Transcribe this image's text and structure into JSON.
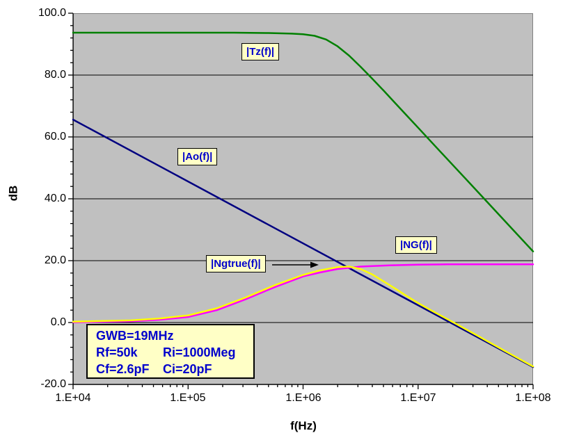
{
  "chart_data": {
    "type": "line",
    "title": "",
    "xlabel": "f(Hz)",
    "ylabel": "dB",
    "x_scale": "log10",
    "xlim": [
      10000,
      100000000
    ],
    "ylim": [
      -20,
      100
    ],
    "y_major_step": 20,
    "y_minor_step": 4,
    "grid": "horizontal major gridlines only",
    "legend_position": "inline boxed labels on plot",
    "plot_bg_color": "#c0c0c0",
    "plot_border_color": "#808080",
    "label_box_bg": "#ffffc6",
    "label_text_color": "#0000cc",
    "x_tick_labels": [
      "1.E+04",
      "1.E+05",
      "1.E+06",
      "1.E+07",
      "1.E+08"
    ],
    "y_tick_labels": [
      "100.0",
      "80.0",
      "60.0",
      "40.0",
      "20.0",
      "0.0",
      "-20.0"
    ],
    "series": [
      {
        "name": "|Tz(f)|",
        "color": "#008000",
        "points_logf_db": [
          [
            4,
            93.7
          ],
          [
            4.5,
            93.7
          ],
          [
            5,
            93.7
          ],
          [
            5.4,
            93.7
          ],
          [
            5.7,
            93.6
          ],
          [
            5.9,
            93.4
          ],
          [
            6,
            93.2
          ],
          [
            6.1,
            92.7
          ],
          [
            6.2,
            91.5
          ],
          [
            6.3,
            89.3
          ],
          [
            6.4,
            86.3
          ],
          [
            6.5,
            82.7
          ],
          [
            6.6,
            78.9
          ],
          [
            6.7,
            75.0
          ],
          [
            6.8,
            71.0
          ],
          [
            6.9,
            67.0
          ],
          [
            7,
            63.0
          ],
          [
            7.2,
            55.0
          ],
          [
            7.4,
            47.0
          ],
          [
            7.6,
            39.0
          ],
          [
            7.8,
            31.0
          ],
          [
            8,
            23.0
          ]
        ]
      },
      {
        "name": "|Ao(f)|",
        "color": "#000080",
        "points_logf_db": [
          [
            4,
            65.6
          ],
          [
            8,
            -14.4
          ]
        ]
      },
      {
        "name": "|NG(f)|",
        "color": "#ff00ff",
        "points_logf_db": [
          [
            4,
            0.1
          ],
          [
            4.5,
            0.4
          ],
          [
            4.75,
            0.9
          ],
          [
            5,
            1.8
          ],
          [
            5.25,
            4.0
          ],
          [
            5.5,
            7.5
          ],
          [
            5.75,
            11.4
          ],
          [
            6,
            14.9
          ],
          [
            6.15,
            16.2
          ],
          [
            6.3,
            17.3
          ],
          [
            6.5,
            18.1
          ],
          [
            6.75,
            18.5
          ],
          [
            7,
            18.7
          ],
          [
            7.25,
            18.8
          ],
          [
            7.5,
            18.8
          ],
          [
            8,
            18.8
          ]
        ]
      },
      {
        "name": "|Ngtrue(f)|",
        "color": "#ffff00",
        "points_logf_db": [
          [
            4,
            0.3
          ],
          [
            4.5,
            0.7
          ],
          [
            4.75,
            1.3
          ],
          [
            5,
            2.3
          ],
          [
            5.25,
            4.6
          ],
          [
            5.5,
            8.1
          ],
          [
            5.75,
            12.0
          ],
          [
            6,
            15.4
          ],
          [
            6.15,
            16.9
          ],
          [
            6.3,
            17.9
          ],
          [
            6.4,
            18.1
          ],
          [
            6.5,
            17.3
          ],
          [
            6.6,
            15.6
          ],
          [
            6.7,
            13.3
          ],
          [
            6.8,
            11.0
          ],
          [
            6.9,
            8.6
          ],
          [
            7,
            6.3
          ],
          [
            7.1,
            4.2
          ],
          [
            7.25,
            1.2
          ],
          [
            7.5,
            -3.9
          ],
          [
            7.75,
            -9.1
          ],
          [
            8,
            -14.2
          ]
        ]
      }
    ],
    "annotation_box": {
      "row1": "GWB=19MHz",
      "row2_col1": "Rf=50k",
      "row2_col2": "Ri=1000Meg",
      "row3_col1": "Cf=2.6pF",
      "row3_col2": "Ci=20pF"
    }
  }
}
